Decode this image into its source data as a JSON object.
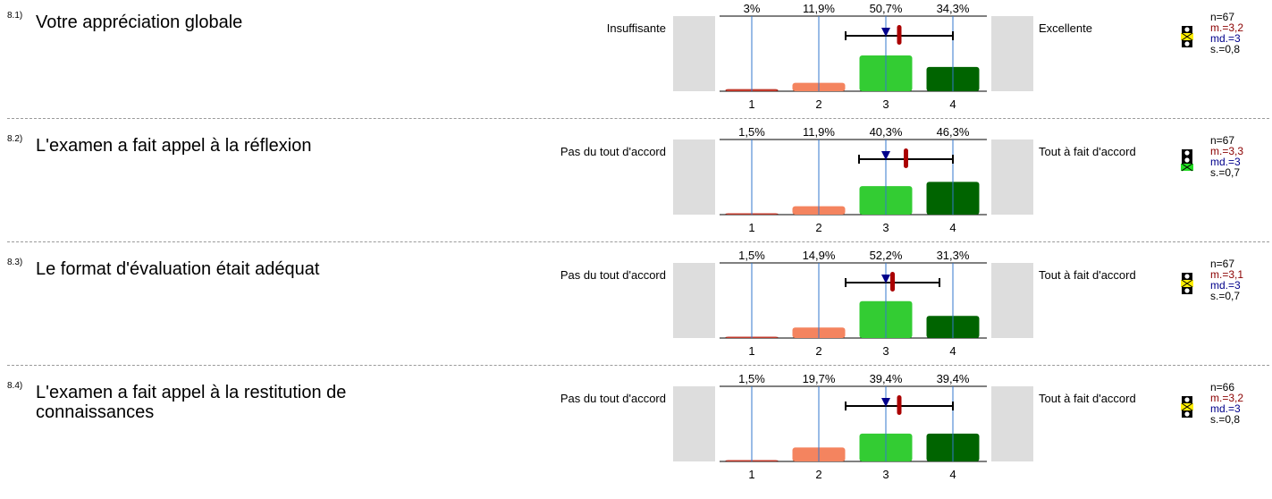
{
  "colors": {
    "bar_1": "#c0392b",
    "bar_2": "#f4845f",
    "bar_3": "#33cc33",
    "bar_4": "#006400",
    "mean_marker": "#aa0000",
    "median_marker": "#00008b",
    "gridline": "#3377cc",
    "side_box": "#dddddd"
  },
  "chart_data": [
    {
      "type": "bar",
      "number": "8.1)",
      "title": "Votre appréciation globale",
      "left_label": "Insuffisante",
      "right_label": "Excellente",
      "categories": [
        "1",
        "2",
        "3",
        "4"
      ],
      "percent_labels": [
        "3%",
        "11,9%",
        "50,7%",
        "34,3%"
      ],
      "values": [
        3,
        11.9,
        50.7,
        34.3
      ],
      "mean": 3.2,
      "median": 3,
      "sd": 0.8,
      "stats": {
        "n": "n=67",
        "mean": "m.=3,2",
        "median": "md.=3",
        "sd": "s.=0,8"
      },
      "traffic_light": "yellow"
    },
    {
      "type": "bar",
      "number": "8.2)",
      "title": "L'examen a fait appel à la réflexion",
      "left_label": "Pas du tout d'accord",
      "right_label": "Tout à fait d'accord",
      "categories": [
        "1",
        "2",
        "3",
        "4"
      ],
      "percent_labels": [
        "1,5%",
        "11,9%",
        "40,3%",
        "46,3%"
      ],
      "values": [
        1.5,
        11.9,
        40.3,
        46.3
      ],
      "mean": 3.3,
      "median": 3,
      "sd": 0.7,
      "stats": {
        "n": "n=67",
        "mean": "m.=3,3",
        "median": "md.=3",
        "sd": "s.=0,7"
      },
      "traffic_light": "green"
    },
    {
      "type": "bar",
      "number": "8.3)",
      "title": "Le format d'évaluation était adéquat",
      "left_label": "Pas du tout d'accord",
      "right_label": "Tout à fait d'accord",
      "categories": [
        "1",
        "2",
        "3",
        "4"
      ],
      "percent_labels": [
        "1,5%",
        "14,9%",
        "52,2%",
        "31,3%"
      ],
      "values": [
        1.5,
        14.9,
        52.2,
        31.3
      ],
      "mean": 3.1,
      "median": 3,
      "sd": 0.7,
      "stats": {
        "n": "n=67",
        "mean": "m.=3,1",
        "median": "md.=3",
        "sd": "s.=0,7"
      },
      "traffic_light": "yellow"
    },
    {
      "type": "bar",
      "number": "8.4)",
      "title": "L'examen a fait appel à la restitution de connaissances",
      "left_label": "Pas du tout d'accord",
      "right_label": "Tout à fait d'accord",
      "categories": [
        "1",
        "2",
        "3",
        "4"
      ],
      "percent_labels": [
        "1,5%",
        "19,7%",
        "39,4%",
        "39,4%"
      ],
      "values": [
        1.5,
        19.7,
        39.4,
        39.4
      ],
      "mean": 3.2,
      "median": 3,
      "sd": 0.8,
      "stats": {
        "n": "n=66",
        "mean": "m.=3,2",
        "median": "md.=3",
        "sd": "s.=0,8"
      },
      "traffic_light": "yellow"
    }
  ]
}
